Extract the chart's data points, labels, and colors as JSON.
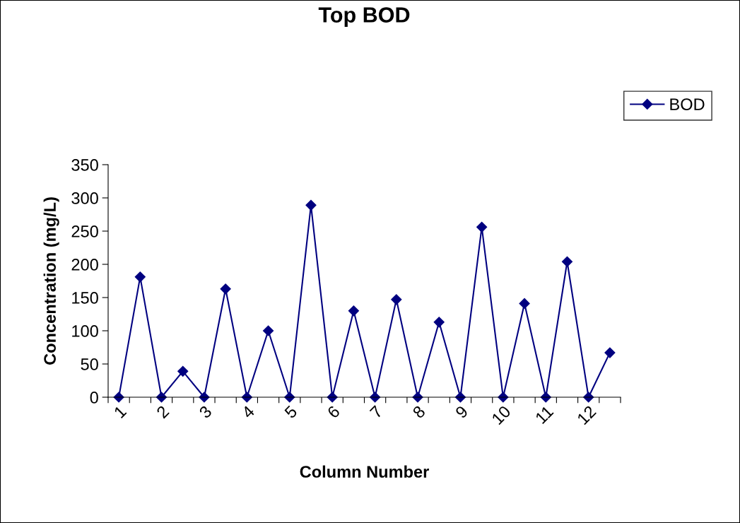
{
  "chart_data": {
    "type": "line",
    "title": "Top BOD",
    "xlabel": "Column Number",
    "ylabel": "Concentration (mg/L)",
    "categories": [
      "1",
      null,
      "2",
      null,
      "3",
      null,
      "4",
      null,
      "5",
      null,
      "6",
      null,
      "7",
      null,
      "8",
      null,
      "9",
      null,
      "10",
      null,
      "11",
      null,
      "12",
      null
    ],
    "series": [
      {
        "name": "BOD",
        "color": "#000080",
        "values": [
          0,
          181,
          0,
          39,
          0,
          163,
          0,
          100,
          0,
          289,
          0,
          130,
          0,
          147,
          0,
          113,
          0,
          256,
          0,
          141,
          0,
          204,
          0,
          67
        ]
      }
    ],
    "ylim": [
      0,
      350
    ],
    "yticks": [
      0,
      50,
      100,
      150,
      200,
      250,
      300,
      350
    ],
    "grid": false,
    "legend": "top right",
    "marker": "diamond",
    "line_style": "solid"
  }
}
